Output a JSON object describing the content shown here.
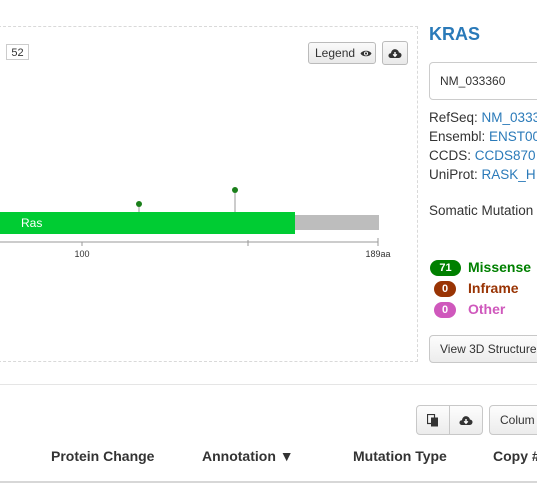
{
  "plot": {
    "y_axis_max": "52",
    "legend_label": "Legend",
    "domain_label": "Ras",
    "domain_color": "#00cc33",
    "backbone_color": "#bdbdbd",
    "lollipop_color": "#1a7f1a",
    "x_ticks": [
      "100",
      "189aa"
    ]
  },
  "gene": {
    "symbol": "KRAS",
    "transcript": "NM_033360",
    "refseq_label": "RefSeq:",
    "refseq_value": "NM_0333",
    "ensembl_label": "Ensembl:",
    "ensembl_value": "ENST00",
    "ccds_label": "CCDS:",
    "ccds_value": "CCDS870",
    "uniprot_label": "UniProt:",
    "uniprot_value": "RASK_H",
    "somatic_label": "Somatic Mutation"
  },
  "mutation_types": [
    {
      "count": "71",
      "label": "Missense",
      "color": "#008000",
      "text_color": "#008000"
    },
    {
      "count": "0",
      "label": "Inframe",
      "color": "#993404",
      "text_color": "#993404"
    },
    {
      "count": "0",
      "label": "Other",
      "color": "#cf58bc",
      "text_color": "#cf58bc"
    }
  ],
  "buttons": {
    "view_3d": "View 3D Structure",
    "columns": "Colum"
  },
  "table": {
    "headers": [
      "Protein Change",
      "Annotation ▼",
      "Mutation Type",
      "Copy #"
    ]
  }
}
